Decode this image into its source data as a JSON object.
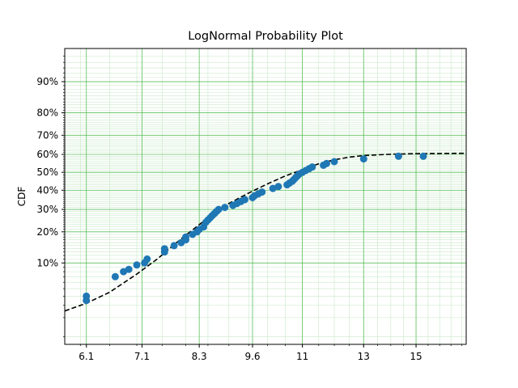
{
  "chart_data": {
    "type": "scatter",
    "title": "LogNormal Probability Plot",
    "xlabel": "",
    "ylabel": "CDF",
    "x_scale": "log",
    "y_scale": "probability",
    "xlim": [
      5.75,
      17.2
    ],
    "ylim": [
      0.0075,
      0.96
    ],
    "x_ticks": [
      6.1,
      7.1,
      8.3,
      9.6,
      11,
      13,
      15
    ],
    "y_ticks": [
      0.1,
      0.2,
      0.3,
      0.4,
      0.5,
      0.6,
      0.7,
      0.8,
      0.9
    ],
    "y_tick_labels": [
      "10%",
      "20%",
      "30%",
      "40%",
      "50%",
      "60%",
      "70%",
      "80%",
      "90%"
    ],
    "grid": true,
    "marker_color": "#1f77b4",
    "grid_major_color": "#5bbf5b",
    "grid_minor_color": "#c9e8c9",
    "fit_line": {
      "style": "dashed",
      "color": "#000000",
      "x": [
        5.75,
        6.1,
        6.5,
        7.0,
        7.4,
        7.8,
        8.2,
        8.6,
        9.0,
        9.5,
        10.0,
        10.5,
        11.0,
        11.5,
        12.0,
        12.5,
        13.0,
        14.0,
        15.0,
        16.0,
        17.2
      ],
      "y": [
        0.025,
        0.032,
        0.045,
        0.075,
        0.11,
        0.16,
        0.215,
        0.275,
        0.33,
        0.385,
        0.435,
        0.48,
        0.515,
        0.548,
        0.57,
        0.585,
        0.594,
        0.601,
        0.604,
        0.605,
        0.606
      ]
    },
    "series": [
      {
        "x": [
          6.1,
          6.1,
          6.6,
          6.75,
          6.85,
          7.0,
          7.15,
          7.2,
          7.55,
          7.55,
          7.75,
          7.9,
          8.0,
          8.0,
          8.15,
          8.25,
          8.3,
          8.4,
          8.45,
          8.5,
          8.55,
          8.6,
          8.65,
          8.7,
          8.75,
          8.9,
          9.1,
          9.2,
          9.3,
          9.4,
          9.6,
          9.65,
          9.75,
          9.85,
          10.15,
          10.3,
          10.55,
          10.62,
          10.7,
          10.75,
          10.8,
          10.85,
          10.9,
          11.0,
          11.1,
          11.2,
          11.3,
          11.65,
          11.75,
          12.0,
          13.0,
          14.3,
          15.3
        ],
        "y": [
          0.035,
          0.04,
          0.07,
          0.08,
          0.085,
          0.095,
          0.1,
          0.11,
          0.13,
          0.14,
          0.15,
          0.16,
          0.17,
          0.18,
          0.19,
          0.2,
          0.21,
          0.22,
          0.24,
          0.25,
          0.26,
          0.27,
          0.28,
          0.29,
          0.3,
          0.31,
          0.32,
          0.33,
          0.34,
          0.35,
          0.36,
          0.37,
          0.38,
          0.39,
          0.41,
          0.42,
          0.43,
          0.44,
          0.45,
          0.46,
          0.47,
          0.48,
          0.49,
          0.5,
          0.51,
          0.52,
          0.53,
          0.54,
          0.55,
          0.56,
          0.575,
          0.59,
          0.59
        ]
      }
    ]
  }
}
